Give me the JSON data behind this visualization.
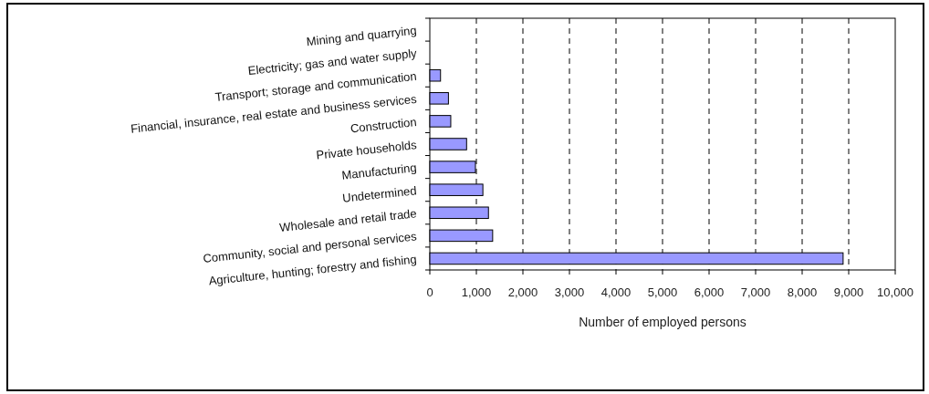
{
  "chart_data": {
    "type": "bar",
    "orientation": "horizontal",
    "categories": [
      "Mining and quarrying",
      "Electricity; gas and water supply",
      "Transport; storage and communication",
      "Financial, insurance, real estate and business services",
      "Construction",
      "Private households",
      "Manufacturing",
      "Undetermined",
      "Wholesale and retail trade",
      "Community, social and personal services",
      "Agriculture, hunting; forestry and fishing"
    ],
    "values": [
      0,
      0,
      230,
      400,
      450,
      790,
      980,
      1140,
      1260,
      1350,
      8880
    ],
    "color": "#9999ff",
    "xlabel": "Number of employed persons",
    "xlim": [
      0,
      10000
    ],
    "xticks": [
      {
        "value": 0,
        "label": "0"
      },
      {
        "value": 1000,
        "label": "1,000"
      },
      {
        "value": 2000,
        "label": "2,000"
      },
      {
        "value": 3000,
        "label": "3,000"
      },
      {
        "value": 4000,
        "label": "4,000"
      },
      {
        "value": 5000,
        "label": "5,000"
      },
      {
        "value": 6000,
        "label": "6,000"
      },
      {
        "value": 7000,
        "label": "7,000"
      },
      {
        "value": 8000,
        "label": "8,000"
      },
      {
        "value": 9000,
        "label": "9,000"
      },
      {
        "value": 10000,
        "label": "10,000"
      }
    ],
    "grid": "x",
    "line_style": "dashed"
  }
}
